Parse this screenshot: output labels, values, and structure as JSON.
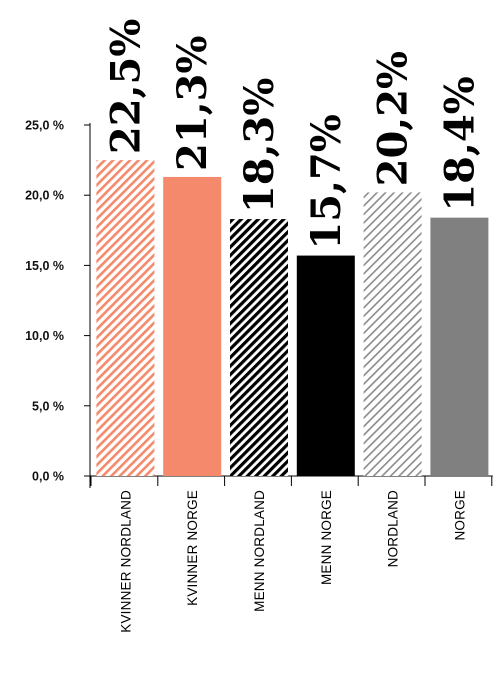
{
  "chart_data": {
    "type": "bar",
    "categories": [
      "KVINNER NORDLAND",
      "KVINNER NORGE",
      "MENN NORDLAND",
      "MENN NORGE",
      "NORDLAND",
      "NORGE"
    ],
    "values": [
      22.5,
      21.3,
      18.3,
      15.7,
      20.2,
      18.4
    ],
    "data_labels": [
      "22,5%",
      "21,3%",
      "18,3%",
      "15,7%",
      "20,2%",
      "18,4%"
    ],
    "ylim": [
      0,
      25
    ],
    "yticks": [
      {
        "value": 0,
        "label": "0,0 %"
      },
      {
        "value": 5,
        "label": "5,0 %"
      },
      {
        "value": 10,
        "label": "10,0 %"
      },
      {
        "value": 15,
        "label": "15,0 %"
      },
      {
        "value": 20,
        "label": "20,0 %"
      },
      {
        "value": 25,
        "label": "25,0 %"
      }
    ],
    "bar_styles": [
      {
        "fill": "hatch",
        "color": "#f4896b"
      },
      {
        "fill": "solid",
        "color": "#f4896b"
      },
      {
        "fill": "hatch-dense",
        "color": "#000000"
      },
      {
        "fill": "solid",
        "color": "#000000"
      },
      {
        "fill": "hatch",
        "color": "#999999"
      },
      {
        "fill": "solid",
        "color": "#808080"
      }
    ],
    "grid": false,
    "legend": "none"
  }
}
